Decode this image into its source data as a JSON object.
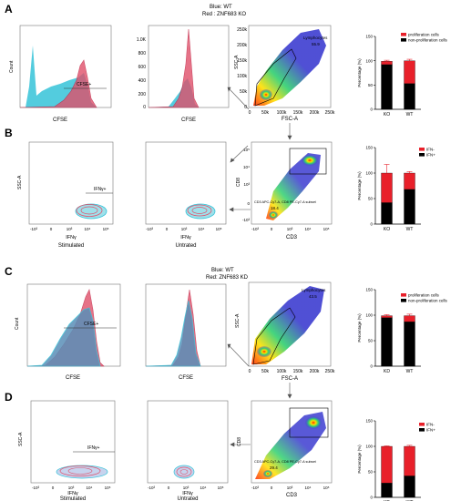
{
  "panel_letters": [
    "A",
    "B",
    "C",
    "D"
  ],
  "headers": [
    {
      "line1": "Blue: WT",
      "line2": "Red : ZNF683 KO"
    },
    {
      "line1": "Blue: WT",
      "line2": "Red: ZNF683 KD"
    }
  ],
  "axis_text": {
    "count": "Count",
    "cfse": "CFSE",
    "ifng": "IFNγ",
    "ssc": "SSC-A",
    "fsc": "FSC-A",
    "cd8": "CD8",
    "cd3": "CD3",
    "percentage": "Percentage (%)"
  },
  "condition_labels": {
    "stimulated": "Stimulated",
    "untrated": "Untrated"
  },
  "gate_labels": {
    "cfse_plus": "CFSE+",
    "ifng_plus": "IFNγ+",
    "lymphocytes": "Lymphocytes",
    "cd8_subset": "CD3 APC-Cy7-A, CD8 PE-Cy7-A subset"
  },
  "gate_values": {
    "A_lymph": "55.9",
    "B_cd8": "18.4",
    "C_lymph": "43.5",
    "D_cd8": "29.4"
  },
  "ticks": {
    "hist_y_1": [
      "1.0K",
      "800",
      "600",
      "400",
      "200",
      "0"
    ],
    "fsc_x": [
      "0",
      "50k",
      "100k",
      "150k",
      "200k",
      "250k"
    ],
    "ssc_y": [
      "250k",
      "200k",
      "150k",
      "100k",
      "50k",
      "0"
    ],
    "log_x": [
      "-10³",
      "0",
      "10³",
      "10⁴",
      "10⁵"
    ],
    "log_y": [
      "10⁵",
      "10⁴",
      "10³",
      "0",
      "-10³"
    ]
  },
  "legends": {
    "prolif": [
      "proliferation cells",
      "non-proliferation cells"
    ],
    "ifn": [
      "IFN-",
      "IFN+"
    ]
  },
  "colors": {
    "red": "#e8202a",
    "black": "#000000",
    "wt_cyan": "#35c3d8",
    "ko_pink": "#e0506a",
    "flow_blue": "#3c3cd0"
  },
  "chart_data": [
    {
      "panel": "A",
      "type": "bar",
      "stacked": true,
      "ylabel": "Percentage (%)",
      "ylim": [
        0,
        150
      ],
      "yticks": [
        0,
        50,
        100,
        150
      ],
      "categories": [
        "KO",
        "WT"
      ],
      "series": [
        {
          "name": "proliferation cells",
          "values": [
            7,
            47
          ],
          "color": "#e8202a"
        },
        {
          "name": "non-proliferation cells",
          "values": [
            92,
            53
          ],
          "color": "#000000"
        }
      ],
      "error_top": [
        2,
        3
      ]
    },
    {
      "panel": "B",
      "type": "bar",
      "stacked": true,
      "ylabel": "Percentage (%)",
      "ylim": [
        0,
        150
      ],
      "yticks": [
        0,
        50,
        100,
        150
      ],
      "categories": [
        "KO",
        "WT"
      ],
      "series": [
        {
          "name": "IFN-",
          "values": [
            58,
            32
          ],
          "color": "#e8202a"
        },
        {
          "name": "IFN+",
          "values": [
            42,
            68
          ],
          "color": "#000000"
        }
      ],
      "error_top": [
        17,
        3
      ]
    },
    {
      "panel": "C",
      "type": "bar",
      "stacked": true,
      "ylabel": "Percentage (%)",
      "ylim": [
        0,
        150
      ],
      "yticks": [
        0,
        50,
        100,
        150
      ],
      "categories": [
        "KD",
        "WT"
      ],
      "series": [
        {
          "name": "proliferation cells",
          "values": [
            4,
            12
          ],
          "color": "#e8202a"
        },
        {
          "name": "non-proliferation cells",
          "values": [
            95,
            87
          ],
          "color": "#000000"
        }
      ],
      "error_top": [
        2,
        3
      ]
    },
    {
      "panel": "D",
      "type": "bar",
      "stacked": true,
      "ylabel": "Percentage (%)",
      "ylim": [
        0,
        150
      ],
      "yticks": [
        0,
        50,
        100,
        150
      ],
      "categories": [
        "KD",
        "WT"
      ],
      "series": [
        {
          "name": "IFN-",
          "values": [
            72,
            58
          ],
          "color": "#e8202a"
        },
        {
          "name": "IFN+",
          "values": [
            28,
            42
          ],
          "color": "#000000"
        }
      ],
      "error_top": [
        1,
        2
      ]
    }
  ]
}
